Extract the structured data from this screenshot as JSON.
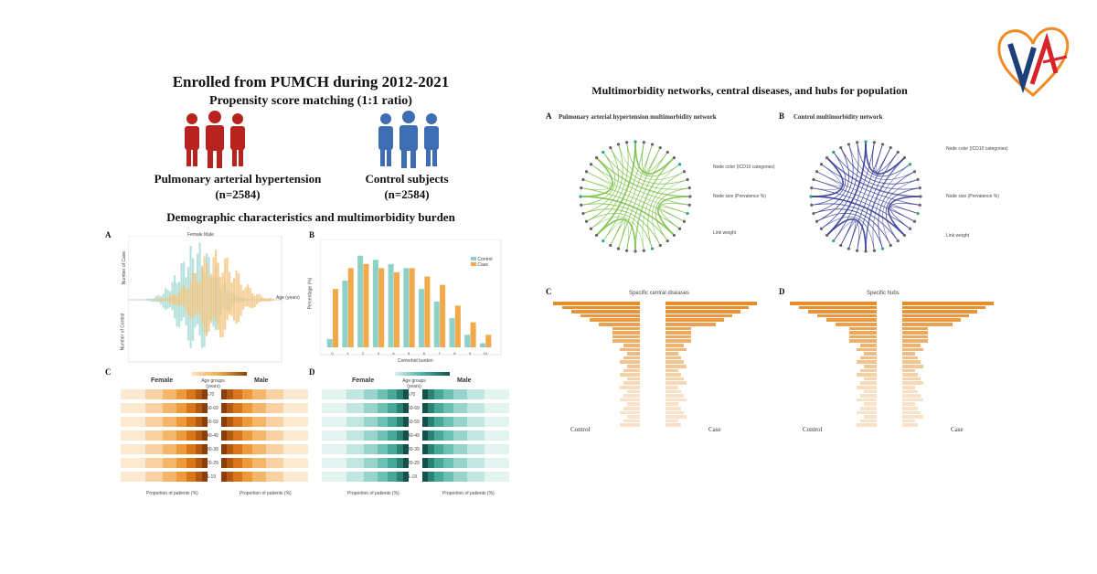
{
  "left": {
    "title": "Enrolled from PUMCH during 2012-2021",
    "subtitle": "Propensity score matching (1:1 ratio)",
    "group_pah": {
      "name": "Pulmonary arterial hypertension",
      "n": "(n=2584)"
    },
    "group_ctrl": {
      "name": "Control subjects",
      "n": "(n=2584)"
    },
    "section_title": "Demographic characteristics and multimorbidity burden",
    "panel_a": {
      "letter": "A",
      "legend": "Female  Male",
      "xlabel": "Age (years)",
      "ylabel_top": "Number of Case",
      "ylabel_bottom": "Number of Control"
    },
    "panel_b": {
      "letter": "B",
      "legend": [
        "Control",
        "Case"
      ],
      "xlabel": "Comorbid burden",
      "ylabel": "Percentage (%)"
    },
    "panel_c": {
      "letter": "C",
      "female": "Female",
      "male": "Male",
      "age_head": "Age groups (years)",
      "xlabel": "Proportion of patients (%)",
      "ages": [
        "≥70",
        "60-69",
        "50-59",
        "40-49",
        "30-39",
        "20-29",
        "1-19"
      ]
    },
    "panel_d": {
      "letter": "D",
      "female": "Female",
      "male": "Male",
      "age_head": "Age groups (years)",
      "xlabel": "Proportion of patients (%)",
      "ages": [
        "≥70",
        "60-69",
        "50-59",
        "40-49",
        "30-39",
        "20-29",
        "1-19"
      ]
    }
  },
  "right": {
    "title": "Multimorbidity networks, central diseases, and hubs for population",
    "panel_a": {
      "letter": "A",
      "title": "Pulmonary arterial hypertension  multimorbidity network",
      "legend": [
        "Node color (ICD10 categories)",
        "Node size (Prevalence %)",
        "Link weight"
      ]
    },
    "panel_b": {
      "letter": "B",
      "title": "Control multimorbidity network",
      "legend": [
        "Node color (ICD10 categories)",
        "Node size (Prevalence %)",
        "Link weight"
      ]
    },
    "panel_c": {
      "letter": "C",
      "title": "Specific central diseases",
      "left": "Control",
      "right": "Case"
    },
    "panel_d": {
      "letter": "D",
      "title": "Specific hubs",
      "left": "Control",
      "right": "Case"
    }
  },
  "colors": {
    "pah_red": "#b8231f",
    "ctrl_blue": "#3f6db4",
    "orange": "#f1a94a",
    "teal": "#8fd0c8",
    "green": "#7cc24a",
    "purple": "#3b3f9a"
  },
  "chart_data": [
    {
      "type": "bar",
      "title": "",
      "xlabel": "Comorbid burden",
      "ylabel": "Percentage (%)",
      "categories": [
        "0",
        "1",
        "2",
        "3",
        "4",
        "5",
        "6",
        "7",
        "8",
        "9",
        "10"
      ],
      "series": [
        {
          "name": "Control",
          "values": [
            2,
            16,
            22,
            21,
            20,
            19,
            14,
            11,
            7,
            3,
            1
          ]
        },
        {
          "name": "Case",
          "values": [
            14,
            19,
            20,
            19,
            18,
            19,
            17,
            15,
            10,
            6,
            3
          ]
        }
      ],
      "ylim": [
        0,
        25
      ],
      "legend": "top-right"
    }
  ]
}
